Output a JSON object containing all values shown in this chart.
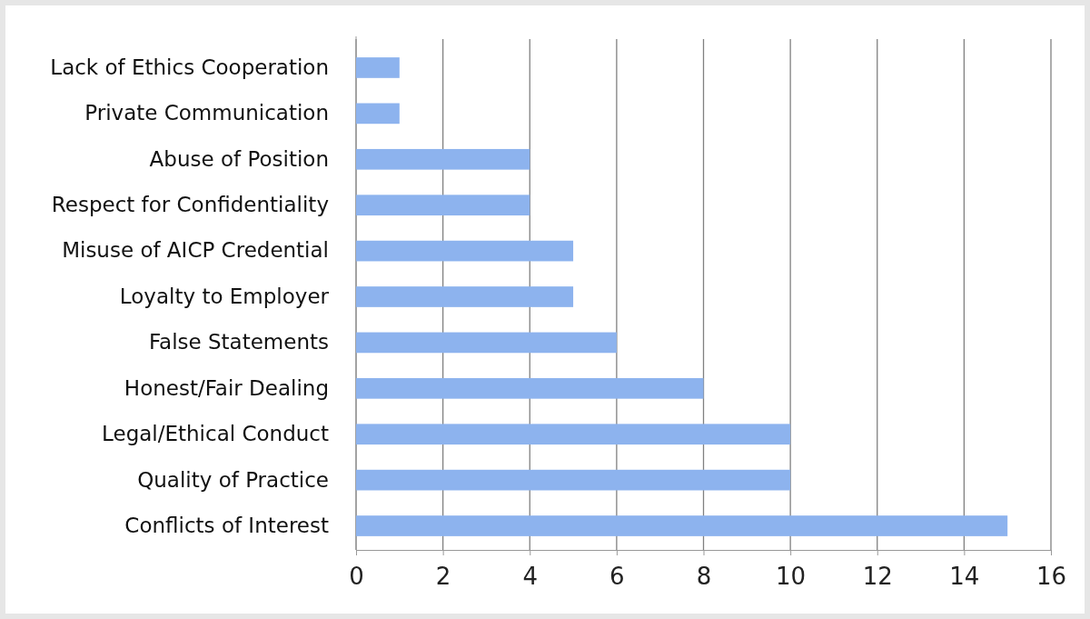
{
  "chart_data": {
    "type": "bar",
    "orientation": "horizontal",
    "categories": [
      "Lack of Ethics Cooperation",
      "Private Communication",
      "Abuse of Position",
      "Respect for Confidentiality",
      "Misuse of AICP Credential",
      "Loyalty to Employer",
      "False Statements",
      "Honest/Fair Dealing",
      "Legal/Ethical Conduct",
      "Quality of Practice",
      "Conflicts of Interest"
    ],
    "values": [
      1,
      1,
      4,
      4,
      5,
      5,
      6,
      8,
      10,
      10,
      15
    ],
    "color": "#8db3ee",
    "xlim": [
      0,
      16
    ],
    "xticks": [
      0,
      2,
      4,
      6,
      8,
      10,
      12,
      14,
      16
    ],
    "grid": "x"
  }
}
